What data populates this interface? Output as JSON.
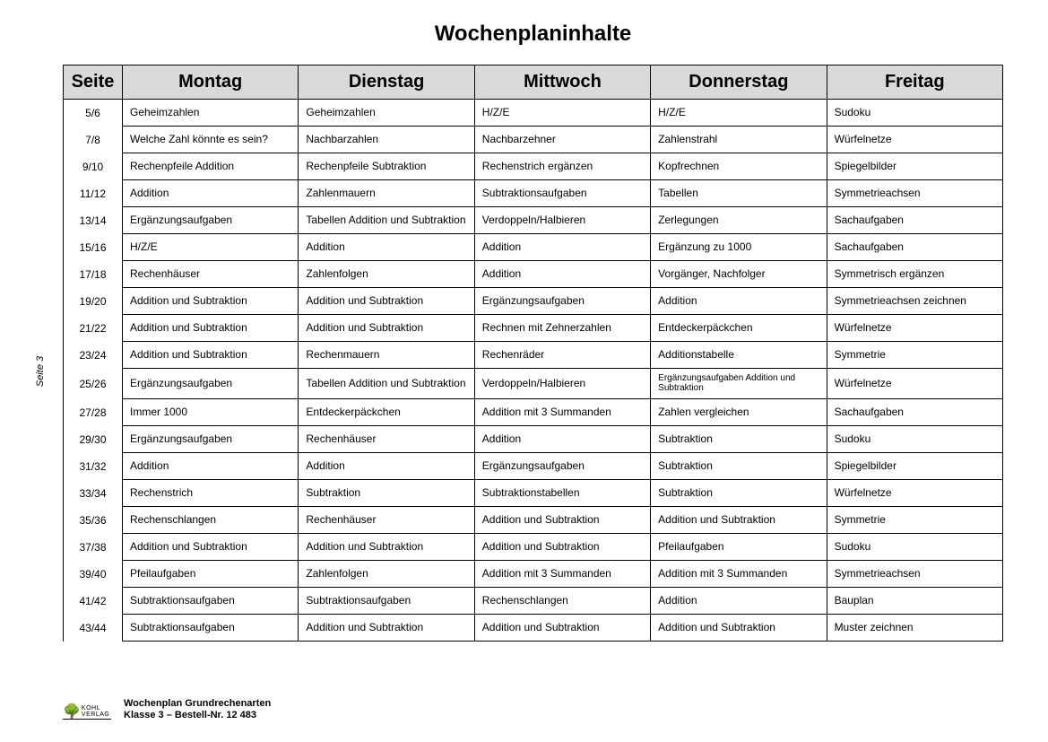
{
  "title": "Wochenplaninhalte",
  "side_label": "Seite 3",
  "footer": {
    "brand": "KOHL VERLAG",
    "line1": "Wochenplan Grundrechenarten",
    "line2": "Klasse 3    –    Bestell-Nr. 12 483"
  },
  "table": {
    "type": "table",
    "header_bg": "#d9d9d9",
    "border_color": "#000000",
    "background_color": "#ffffff",
    "header_fontsize": 20,
    "cell_fontsize": 12,
    "small_cell_fontsize": 10,
    "columns": [
      "Seite",
      "Montag",
      "Dienstag",
      "Mittwoch",
      "Donnerstag",
      "Freitag"
    ],
    "col_widths": [
      "66px",
      "auto",
      "auto",
      "auto",
      "auto",
      "auto"
    ],
    "col_align": [
      "center",
      "left",
      "left",
      "left",
      "left",
      "left"
    ],
    "rows": [
      [
        "5/6",
        "Geheimzahlen",
        "Geheimzahlen",
        "H/Z/E",
        "H/Z/E",
        "Sudoku"
      ],
      [
        "7/8",
        "Welche Zahl könnte es sein?",
        "Nachbarzahlen",
        "Nachbarzehner",
        "Zahlenstrahl",
        "Würfelnetze"
      ],
      [
        "9/10",
        "Rechenpfeile Addition",
        "Rechenpfeile Subtraktion",
        "Rechenstrich ergänzen",
        "Kopfrechnen",
        "Spiegelbilder"
      ],
      [
        "11/12",
        "Addition",
        "Zahlenmauern",
        "Subtraktionsaufgaben",
        "Tabellen",
        "Symmetrieachsen"
      ],
      [
        "13/14",
        "Ergänzungsaufgaben",
        "Tabellen Addition und Subtraktion",
        "Verdoppeln/Halbieren",
        "Zerlegungen",
        "Sachaufgaben"
      ],
      [
        "15/16",
        "H/Z/E",
        "Addition",
        "Addition",
        "Ergänzung zu 1000",
        "Sachaufgaben"
      ],
      [
        "17/18",
        "Rechenhäuser",
        "Zahlenfolgen",
        "Addition",
        "Vorgänger, Nachfolger",
        "Symmetrisch ergänzen"
      ],
      [
        "19/20",
        "Addition und Subtraktion",
        "Addition und Subtraktion",
        "Ergänzungsaufgaben",
        "Addition",
        "Symmetrieachsen zeichnen"
      ],
      [
        "21/22",
        "Addition und Subtraktion",
        "Addition und Subtraktion",
        "Rechnen mit Zehnerzahlen",
        "Entdeckerpäckchen",
        "Würfelnetze"
      ],
      [
        "23/24",
        "Addition und Subtraktion",
        "Rechenmauern",
        "Rechenräder",
        "Additionstabelle",
        "Symmetrie"
      ],
      [
        "25/26",
        "Ergänzungsaufgaben",
        "Tabellen Addition und Subtraktion",
        "Verdoppeln/Halbieren",
        "Ergänzungsaufgaben Addition und Subtraktion",
        "Würfelnetze"
      ],
      [
        "27/28",
        "Immer 1000",
        "Entdeckerpäckchen",
        "Addition mit 3 Summanden",
        "Zahlen vergleichen",
        "Sachaufgaben"
      ],
      [
        "29/30",
        "Ergänzungsaufgaben",
        "Rechenhäuser",
        "Addition",
        "Subtraktion",
        "Sudoku"
      ],
      [
        "31/32",
        "Addition",
        "Addition",
        "Ergänzungsaufgaben",
        "Subtraktion",
        "Spiegelbilder"
      ],
      [
        "33/34",
        "Rechenstrich",
        "Subtraktion",
        "Subtraktionstabellen",
        "Subtraktion",
        "Würfelnetze"
      ],
      [
        "35/36",
        "Rechenschlangen",
        "Rechenhäuser",
        "Addition und Subtraktion",
        "Addition und Subtraktion",
        "Symmetrie"
      ],
      [
        "37/38",
        "Addition und Subtraktion",
        "Addition und Subtraktion",
        "Addition und Subtraktion",
        "Pfeilaufgaben",
        "Sudoku"
      ],
      [
        "39/40",
        "Pfeilaufgaben",
        "Zahlenfolgen",
        "Addition mit 3 Summanden",
        "Addition mit 3 Summanden",
        "Symmetrieachsen"
      ],
      [
        "41/42",
        "Subtraktionsaufgaben",
        "Subtraktionsaufgaben",
        "Rechenschlangen",
        "Addition",
        "Bauplan"
      ],
      [
        "43/44",
        "Subtraktionsaufgaben",
        "Addition und Subtraktion",
        "Addition und Subtraktion",
        "Addition und Subtraktion",
        "Muster zeichnen"
      ]
    ],
    "small_cells": [
      [
        10,
        4
      ]
    ]
  }
}
